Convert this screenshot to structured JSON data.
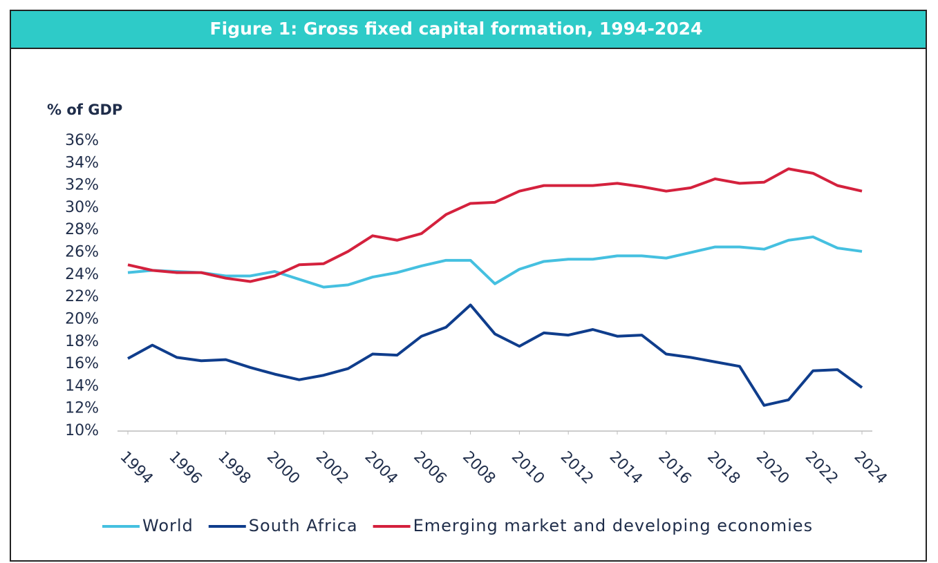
{
  "chart_data": {
    "type": "line",
    "title": "Figure 1: Gross fixed capital formation, 1994-2024",
    "y_label": "% of GDP",
    "x": [
      1994,
      1995,
      1996,
      1997,
      1998,
      1999,
      2000,
      2001,
      2002,
      2003,
      2004,
      2005,
      2006,
      2007,
      2008,
      2009,
      2010,
      2011,
      2012,
      2013,
      2014,
      2015,
      2016,
      2017,
      2018,
      2019,
      2020,
      2021,
      2022,
      2023,
      2024
    ],
    "xlim": [
      1994,
      2024
    ],
    "xticks": [
      1994,
      1996,
      1998,
      2000,
      2002,
      2004,
      2006,
      2008,
      2010,
      2012,
      2014,
      2016,
      2018,
      2020,
      2022,
      2024
    ],
    "ylim": [
      10,
      36
    ],
    "yticks": [
      {
        "value": 10,
        "label": "10%"
      },
      {
        "value": 12,
        "label": "12%"
      },
      {
        "value": 14,
        "label": "14%"
      },
      {
        "value": 16,
        "label": "16%"
      },
      {
        "value": 18,
        "label": "18%"
      },
      {
        "value": 20,
        "label": "20%"
      },
      {
        "value": 22,
        "label": "22%"
      },
      {
        "value": 24,
        "label": "24%"
      },
      {
        "value": 26,
        "label": "26%"
      },
      {
        "value": 28,
        "label": "28%"
      },
      {
        "value": 30,
        "label": "30%"
      },
      {
        "value": 32,
        "label": "32%"
      },
      {
        "value": 34,
        "label": "34%"
      },
      {
        "value": 36,
        "label": "36%"
      }
    ],
    "grid": false,
    "legend": "bottom",
    "series": [
      {
        "name": "World",
        "color": "#45c0e0",
        "values": [
          24.2,
          24.4,
          24.3,
          24.2,
          23.9,
          23.9,
          24.3,
          23.6,
          22.9,
          23.1,
          23.8,
          24.2,
          24.8,
          25.3,
          25.3,
          23.2,
          24.5,
          25.2,
          25.4,
          25.4,
          25.7,
          25.7,
          25.5,
          26.0,
          26.5,
          26.5,
          26.3,
          27.1,
          27.4,
          26.4,
          26.1
        ]
      },
      {
        "name": "South Africa",
        "color": "#0f3d8c",
        "values": [
          16.5,
          17.7,
          16.6,
          16.3,
          16.4,
          15.7,
          15.1,
          14.6,
          15.0,
          15.6,
          16.9,
          16.8,
          18.5,
          19.3,
          21.3,
          18.7,
          17.6,
          18.8,
          18.6,
          19.1,
          18.5,
          18.6,
          16.9,
          16.6,
          16.2,
          15.8,
          12.3,
          12.8,
          15.4,
          15.5,
          13.9
        ]
      },
      {
        "name": "Emerging market and developing economies",
        "color": "#d4213d",
        "values": [
          24.9,
          24.4,
          24.2,
          24.2,
          23.7,
          23.4,
          23.9,
          24.9,
          25.0,
          26.1,
          27.5,
          27.1,
          27.7,
          29.4,
          30.4,
          30.5,
          31.5,
          32.0,
          32.0,
          32.0,
          32.2,
          31.9,
          31.5,
          31.8,
          32.6,
          32.2,
          32.3,
          33.5,
          33.1,
          32.0,
          31.5
        ]
      }
    ]
  }
}
